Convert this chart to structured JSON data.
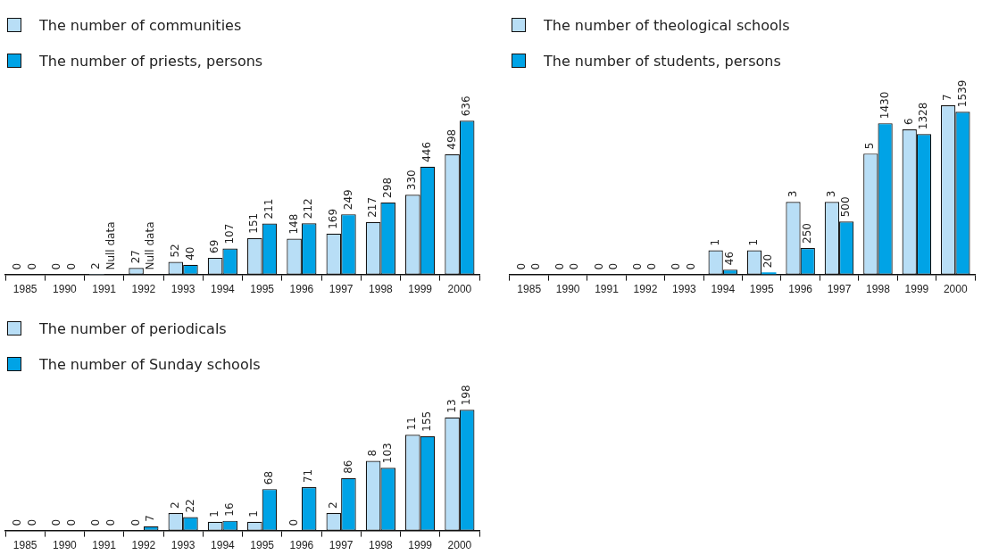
{
  "chart_data": [
    {
      "type": "bar",
      "categories": [
        "1985",
        "1990",
        "1991",
        "1992",
        "1993",
        "1994",
        "1995",
        "1996",
        "1997",
        "1998",
        "1999",
        "2000"
      ],
      "legend": "top left",
      "tick_labels": "x",
      "series": [
        {
          "name": "The number of communities",
          "color": "#b8def6",
          "values": [
            0,
            0,
            2,
            27,
            52,
            69,
            151,
            148,
            169,
            217,
            330,
            498
          ],
          "value_labels": [
            "0",
            "0",
            "2",
            "27",
            "52",
            "69",
            "151",
            "148",
            "169",
            "217",
            "330",
            "498"
          ]
        },
        {
          "name": "The number of priests, persons",
          "color": "#00a3e6",
          "values": [
            0,
            0,
            null,
            null,
            40,
            107,
            211,
            212,
            249,
            298,
            446,
            636
          ],
          "value_labels": [
            "0",
            "0",
            "Null data",
            "Null data",
            "40",
            "107",
            "211",
            "212",
            "249",
            "298",
            "446",
            "636"
          ]
        }
      ]
    },
    {
      "type": "bar",
      "categories": [
        "1985",
        "1990",
        "1991",
        "1992",
        "1993",
        "1994",
        "1995",
        "1996",
        "1997",
        "1998",
        "1999",
        "2000"
      ],
      "legend": "top left",
      "tick_labels": "x",
      "series": [
        {
          "name": "The number of theological schools",
          "color": "#b8def6",
          "axis": "y2",
          "values": [
            0,
            0,
            0,
            0,
            0,
            1,
            1,
            3,
            3,
            5,
            6,
            7
          ],
          "value_labels": [
            "0",
            "0",
            "0",
            "0",
            "0",
            "1",
            "1",
            "3",
            "3",
            "5",
            "6",
            "7"
          ]
        },
        {
          "name": "The number of students, persons",
          "color": "#00a3e6",
          "values": [
            0,
            0,
            0,
            0,
            0,
            46,
            20,
            250,
            500,
            1430,
            1328,
            1539
          ],
          "value_labels": [
            "0",
            "0",
            "0",
            "0",
            "0",
            "46",
            "20",
            "250",
            "500",
            "1430",
            "1328",
            "1539"
          ]
        }
      ]
    },
    {
      "type": "bar",
      "categories": [
        "1985",
        "1990",
        "1991",
        "1992",
        "1993",
        "1994",
        "1995",
        "1996",
        "1997",
        "1998",
        "1999",
        "2000"
      ],
      "legend": "top left",
      "tick_labels": "x",
      "series": [
        {
          "name": "The number of periodicals",
          "color": "#b8def6",
          "axis": "y2",
          "values": [
            0,
            0,
            0,
            0,
            2,
            1,
            1,
            0,
            2,
            8,
            11,
            13
          ],
          "value_labels": [
            "0",
            "0",
            "0",
            "0",
            "2",
            "1",
            "1",
            "0",
            "2",
            "8",
            "11",
            "13"
          ]
        },
        {
          "name": "The number of Sunday schools",
          "color": "#00a3e6",
          "values": [
            0,
            0,
            0,
            7,
            22,
            16,
            68,
            71,
            86,
            103,
            155,
            198
          ],
          "value_labels": [
            "0",
            "0",
            "0",
            "7",
            "22",
            "16",
            "68",
            "71",
            "86",
            "103",
            "155",
            "198"
          ]
        }
      ]
    }
  ]
}
